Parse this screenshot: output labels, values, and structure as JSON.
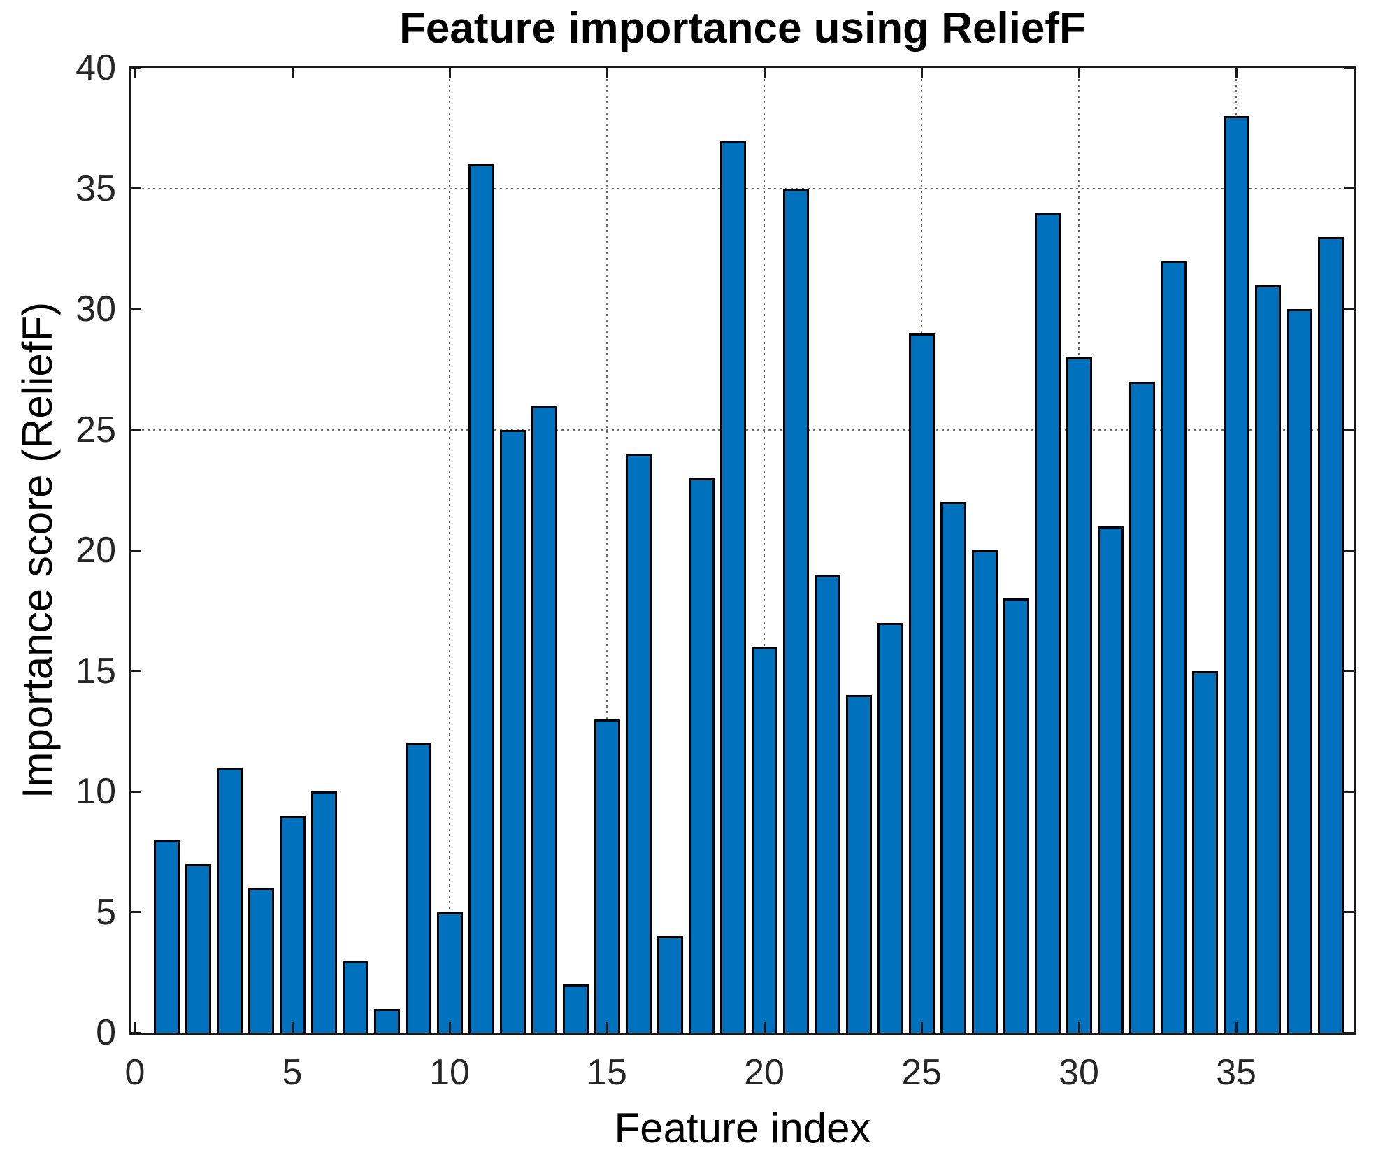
{
  "chart_data": {
    "type": "bar",
    "title": "Feature importance using ReliefF",
    "xlabel": "Feature index",
    "ylabel": "Importance score (ReliefF)",
    "x": [
      1,
      2,
      3,
      4,
      5,
      6,
      7,
      8,
      9,
      10,
      11,
      12,
      13,
      14,
      15,
      16,
      17,
      18,
      19,
      20,
      21,
      22,
      23,
      24,
      25,
      26,
      27,
      28,
      29,
      30,
      31,
      32,
      33,
      34,
      35,
      36,
      37,
      38
    ],
    "values": [
      8,
      7,
      11,
      6,
      9,
      10,
      3,
      1,
      12,
      5,
      36,
      25,
      26,
      2,
      13,
      24,
      4,
      23,
      37,
      16,
      35,
      19,
      14,
      17,
      29,
      22,
      20,
      18,
      34,
      28,
      21,
      27,
      32,
      15,
      38,
      31,
      30,
      33
    ],
    "xlim": [
      0,
      39
    ],
    "ylim": [
      0,
      40
    ],
    "xticks": [
      0,
      5,
      10,
      15,
      20,
      25,
      30,
      35
    ],
    "yticks": [
      0,
      5,
      10,
      15,
      20,
      25,
      30,
      35,
      40
    ],
    "grid_x": [
      10,
      15,
      20,
      25,
      30,
      35
    ],
    "grid_y": [
      25,
      35
    ],
    "grid_on": true,
    "legend": null,
    "bar_color": "#0072BD",
    "bar_edge_color": "#000000",
    "axis_color": "#1a1a1a",
    "tick_label_color": "#262626",
    "grid_color": "#6e6e6e",
    "background_color": "#ffffff"
  }
}
